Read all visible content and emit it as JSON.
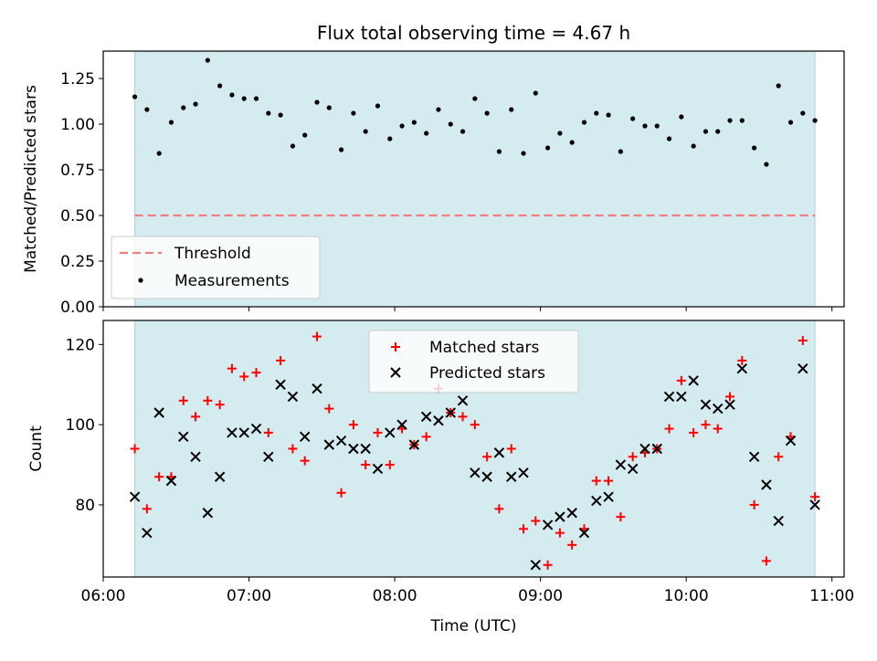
{
  "chart_data": [
    {
      "type": "scatter",
      "title": "Flux total observing time = 4.67 h",
      "ylabel": "Matched/Predicted stars",
      "xlabel": "",
      "ylim": [
        0.0,
        1.4
      ],
      "yticks": [
        "0.00",
        "0.25",
        "0.50",
        "0.75",
        "1.00",
        "1.25"
      ],
      "shaded_span": [
        "06:13",
        "10:53"
      ],
      "shade_color": "#d4ebf0",
      "legend_position": "lower-left",
      "threshold": {
        "name": "Threshold",
        "value": 0.5,
        "style": "dashed",
        "color": "#f08080"
      },
      "series": [
        {
          "name": "Measurements",
          "color": "#000000",
          "marker": "dot",
          "x": [
            "06:13",
            "06:18",
            "06:23",
            "06:28",
            "06:33",
            "06:38",
            "06:43",
            "06:48",
            "06:53",
            "06:58",
            "07:03",
            "07:08",
            "07:13",
            "07:18",
            "07:23",
            "07:28",
            "07:33",
            "07:38",
            "07:43",
            "07:48",
            "07:53",
            "07:58",
            "08:03",
            "08:08",
            "08:13",
            "08:18",
            "08:23",
            "08:28",
            "08:33",
            "08:38",
            "08:43",
            "08:48",
            "08:53",
            "08:58",
            "09:03",
            "09:08",
            "09:13",
            "09:18",
            "09:23",
            "09:28",
            "09:33",
            "09:38",
            "09:43",
            "09:48",
            "09:53",
            "09:58",
            "10:03",
            "10:08",
            "10:13",
            "10:18",
            "10:23",
            "10:28",
            "10:33",
            "10:38",
            "10:43",
            "10:48",
            "10:53"
          ],
          "values": [
            1.15,
            1.08,
            0.84,
            1.01,
            1.09,
            1.11,
            1.35,
            1.21,
            1.16,
            1.14,
            1.14,
            1.06,
            1.05,
            0.88,
            0.94,
            1.12,
            1.09,
            0.86,
            1.06,
            0.96,
            1.1,
            0.92,
            0.99,
            1.01,
            0.95,
            1.08,
            1.0,
            0.96,
            1.14,
            1.06,
            0.85,
            1.08,
            0.84,
            1.17,
            0.87,
            0.95,
            0.9,
            1.01,
            1.06,
            1.05,
            0.85,
            1.03,
            0.99,
            0.99,
            0.92,
            1.04,
            0.88,
            0.96,
            0.96,
            1.02,
            1.02,
            0.87,
            0.78,
            1.21,
            1.01,
            1.06,
            1.02
          ]
        }
      ]
    },
    {
      "type": "scatter",
      "ylabel": "Count",
      "xlabel": "Time (UTC)",
      "xlim": [
        "06:00",
        "11:05"
      ],
      "xticks": [
        "06:00",
        "07:00",
        "08:00",
        "09:00",
        "10:00",
        "11:00"
      ],
      "ylim": [
        62,
        126
      ],
      "yticks": [
        "80",
        "100",
        "120"
      ],
      "shaded_span": [
        "06:13",
        "10:53"
      ],
      "shade_color": "#d4ebf0",
      "legend_position": "upper-center",
      "x": [
        "06:13",
        "06:18",
        "06:23",
        "06:28",
        "06:33",
        "06:38",
        "06:43",
        "06:48",
        "06:53",
        "06:58",
        "07:03",
        "07:08",
        "07:13",
        "07:18",
        "07:23",
        "07:28",
        "07:33",
        "07:38",
        "07:43",
        "07:48",
        "07:53",
        "07:58",
        "08:03",
        "08:08",
        "08:13",
        "08:18",
        "08:23",
        "08:28",
        "08:33",
        "08:38",
        "08:43",
        "08:48",
        "08:53",
        "08:58",
        "09:03",
        "09:08",
        "09:13",
        "09:18",
        "09:23",
        "09:28",
        "09:33",
        "09:38",
        "09:43",
        "09:48",
        "09:53",
        "09:58",
        "10:03",
        "10:08",
        "10:13",
        "10:18",
        "10:23",
        "10:28",
        "10:33",
        "10:38",
        "10:43",
        "10:48",
        "10:53"
      ],
      "series": [
        {
          "name": "Matched stars",
          "color": "#ff0000",
          "marker": "plus",
          "values": [
            94,
            79,
            87,
            87,
            106,
            102,
            106,
            105,
            114,
            112,
            113,
            98,
            116,
            94,
            91,
            122,
            104,
            83,
            100,
            90,
            98,
            90,
            99,
            95,
            97,
            109,
            103,
            102,
            100,
            92,
            79,
            94,
            74,
            76,
            65,
            73,
            70,
            74,
            86,
            86,
            77,
            92,
            93,
            94,
            99,
            111,
            98,
            100,
            99,
            107,
            116,
            80,
            66,
            92,
            97,
            121,
            82
          ]
        },
        {
          "name": "Predicted stars",
          "color": "#000000",
          "marker": "x",
          "values": [
            82,
            73,
            103,
            86,
            97,
            92,
            78,
            87,
            98,
            98,
            99,
            92,
            110,
            107,
            97,
            109,
            95,
            96,
            94,
            94,
            89,
            98,
            100,
            95,
            102,
            101,
            103,
            106,
            88,
            87,
            93,
            87,
            88,
            65,
            75,
            77,
            78,
            73,
            81,
            82,
            90,
            89,
            94,
            94,
            107,
            107,
            111,
            105,
            104,
            105,
            114,
            92,
            85,
            76,
            96,
            114,
            80
          ]
        }
      ]
    }
  ]
}
